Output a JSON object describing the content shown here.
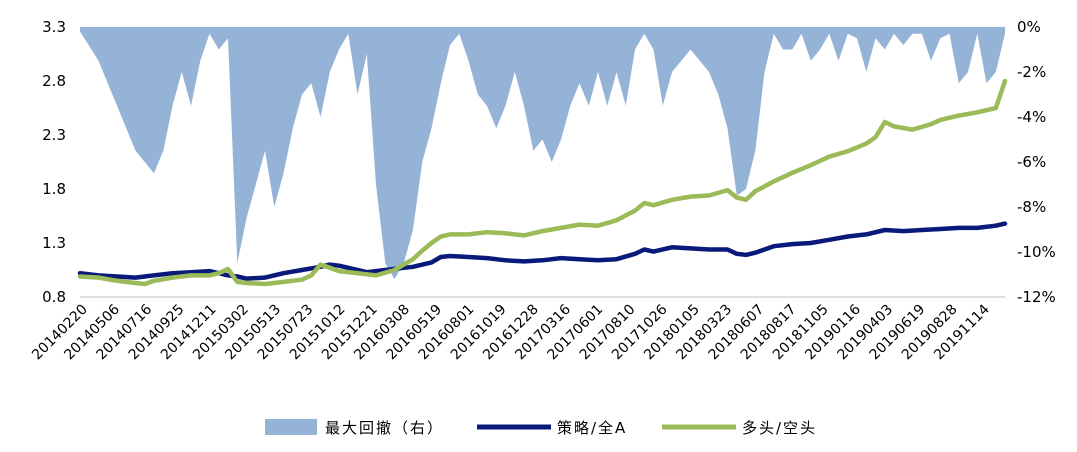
{
  "chart_data": {
    "type": "line+area",
    "x_tick_labels": [
      "20140220",
      "20140506",
      "20140716",
      "20140925",
      "20141211",
      "20150302",
      "20150513",
      "20150723",
      "20151012",
      "20151221",
      "20160308",
      "20160519",
      "20160801",
      "20161019",
      "20161228",
      "20170316",
      "20170601",
      "20170810",
      "20171026",
      "20180105",
      "20180323",
      "20180607",
      "20180817",
      "20181105",
      "20190116",
      "20190403",
      "20190619",
      "20190828",
      "20191114"
    ],
    "left_axis": {
      "ticks": [
        "3.3",
        "2.8",
        "2.3",
        "1.8",
        "1.3",
        "0.8"
      ],
      "ylim": [
        0.8,
        3.3
      ]
    },
    "right_axis": {
      "ticks": [
        "0%",
        "-2%",
        "-4%",
        "-6%",
        "-8%",
        "-10%",
        "-12%"
      ],
      "ylim": [
        -12,
        0
      ]
    },
    "legend": [
      {
        "name": "最大回撤（右）",
        "color": "#95b3d7",
        "kind": "area"
      },
      {
        "name": "策略/全A",
        "color": "#0a1a7a",
        "kind": "line"
      },
      {
        "name": "多头/空头",
        "color": "#9bbb59",
        "kind": "line"
      }
    ],
    "series": [
      {
        "name": "最大回撤（右）",
        "axis": "right",
        "points": [
          [
            0,
            -0.2
          ],
          [
            2,
            -1.5
          ],
          [
            4,
            -3.5
          ],
          [
            6,
            -5.5
          ],
          [
            8,
            -6.5
          ],
          [
            9,
            -5.5
          ],
          [
            10,
            -3.5
          ],
          [
            11,
            -2.0
          ],
          [
            12,
            -3.5
          ],
          [
            13,
            -1.5
          ],
          [
            14,
            -0.3
          ],
          [
            15,
            -1.0
          ],
          [
            16,
            -0.5
          ],
          [
            17,
            -10.5
          ],
          [
            18,
            -8.5
          ],
          [
            19,
            -7.0
          ],
          [
            20,
            -5.5
          ],
          [
            21,
            -8.0
          ],
          [
            22,
            -6.5
          ],
          [
            23,
            -4.5
          ],
          [
            24,
            -3.0
          ],
          [
            25,
            -2.5
          ],
          [
            26,
            -4.0
          ],
          [
            27,
            -2.0
          ],
          [
            28,
            -1.0
          ],
          [
            29,
            -0.3
          ],
          [
            30,
            -3.0
          ],
          [
            31,
            -1.2
          ],
          [
            32,
            -7.0
          ],
          [
            33,
            -10.5
          ],
          [
            34,
            -11.2
          ],
          [
            35,
            -10.5
          ],
          [
            36,
            -9.0
          ],
          [
            37,
            -6.0
          ],
          [
            38,
            -4.5
          ],
          [
            39,
            -2.5
          ],
          [
            40,
            -0.8
          ],
          [
            41,
            -0.3
          ],
          [
            42,
            -1.5
          ],
          [
            43,
            -3.0
          ],
          [
            44,
            -3.5
          ],
          [
            45,
            -4.5
          ],
          [
            46,
            -3.5
          ],
          [
            47,
            -2.0
          ],
          [
            48,
            -3.5
          ],
          [
            49,
            -5.5
          ],
          [
            50,
            -5.0
          ],
          [
            51,
            -6.0
          ],
          [
            52,
            -5.0
          ],
          [
            53,
            -3.5
          ],
          [
            54,
            -2.5
          ],
          [
            55,
            -3.5
          ],
          [
            56,
            -2.0
          ],
          [
            57,
            -3.5
          ],
          [
            58,
            -2.0
          ],
          [
            59,
            -3.5
          ],
          [
            60,
            -1.0
          ],
          [
            61,
            -0.3
          ],
          [
            62,
            -1.0
          ],
          [
            63,
            -3.5
          ],
          [
            64,
            -2.0
          ],
          [
            65,
            -1.5
          ],
          [
            66,
            -1.0
          ],
          [
            67,
            -1.5
          ],
          [
            68,
            -2.0
          ],
          [
            69,
            -3.0
          ],
          [
            70,
            -4.5
          ],
          [
            71,
            -7.5
          ],
          [
            72,
            -7.2
          ],
          [
            73,
            -5.5
          ],
          [
            74,
            -2.0
          ],
          [
            75,
            -0.3
          ],
          [
            76,
            -1.0
          ],
          [
            77,
            -1.0
          ],
          [
            78,
            -0.3
          ],
          [
            79,
            -1.5
          ],
          [
            80,
            -1.0
          ],
          [
            81,
            -0.3
          ],
          [
            82,
            -1.5
          ],
          [
            83,
            -0.3
          ],
          [
            84,
            -0.5
          ],
          [
            85,
            -2.0
          ],
          [
            86,
            -0.5
          ],
          [
            87,
            -1.0
          ],
          [
            88,
            -0.3
          ],
          [
            89,
            -0.8
          ],
          [
            90,
            -0.3
          ],
          [
            91,
            -0.3
          ],
          [
            92,
            -1.5
          ],
          [
            93,
            -0.5
          ],
          [
            94,
            -0.3
          ],
          [
            95,
            -2.5
          ],
          [
            96,
            -2.0
          ],
          [
            97,
            -0.3
          ],
          [
            98,
            -2.5
          ],
          [
            99,
            -2.0
          ],
          [
            100,
            -0.3
          ]
        ]
      },
      {
        "name": "策略/全A",
        "axis": "left",
        "points": [
          [
            0,
            1.02
          ],
          [
            2,
            1.0
          ],
          [
            4,
            0.99
          ],
          [
            6,
            0.98
          ],
          [
            8,
            1.0
          ],
          [
            10,
            1.02
          ],
          [
            12,
            1.03
          ],
          [
            14,
            1.04
          ],
          [
            15,
            1.02
          ],
          [
            16,
            1.0
          ],
          [
            17,
            0.99
          ],
          [
            18,
            0.97
          ],
          [
            20,
            0.98
          ],
          [
            22,
            1.02
          ],
          [
            24,
            1.05
          ],
          [
            26,
            1.08
          ],
          [
            27,
            1.1
          ],
          [
            28,
            1.09
          ],
          [
            30,
            1.05
          ],
          [
            31,
            1.03
          ],
          [
            33,
            1.05
          ],
          [
            35,
            1.07
          ],
          [
            36,
            1.08
          ],
          [
            38,
            1.12
          ],
          [
            39,
            1.17
          ],
          [
            40,
            1.18
          ],
          [
            42,
            1.17
          ],
          [
            44,
            1.16
          ],
          [
            46,
            1.14
          ],
          [
            48,
            1.13
          ],
          [
            50,
            1.14
          ],
          [
            52,
            1.16
          ],
          [
            54,
            1.15
          ],
          [
            56,
            1.14
          ],
          [
            58,
            1.15
          ],
          [
            60,
            1.2
          ],
          [
            61,
            1.24
          ],
          [
            62,
            1.22
          ],
          [
            64,
            1.26
          ],
          [
            66,
            1.25
          ],
          [
            68,
            1.24
          ],
          [
            70,
            1.24
          ],
          [
            71,
            1.2
          ],
          [
            72,
            1.19
          ],
          [
            73,
            1.21
          ],
          [
            75,
            1.27
          ],
          [
            77,
            1.29
          ],
          [
            79,
            1.3
          ],
          [
            81,
            1.33
          ],
          [
            83,
            1.36
          ],
          [
            85,
            1.38
          ],
          [
            87,
            1.42
          ],
          [
            89,
            1.41
          ],
          [
            91,
            1.42
          ],
          [
            93,
            1.43
          ],
          [
            95,
            1.44
          ],
          [
            97,
            1.44
          ],
          [
            99,
            1.46
          ],
          [
            100,
            1.48
          ]
        ]
      },
      {
        "name": "多头/空头",
        "axis": "left",
        "points": [
          [
            0,
            0.99
          ],
          [
            2,
            0.98
          ],
          [
            4,
            0.95
          ],
          [
            6,
            0.93
          ],
          [
            7,
            0.92
          ],
          [
            8,
            0.95
          ],
          [
            10,
            0.98
          ],
          [
            12,
            1.0
          ],
          [
            14,
            1.0
          ],
          [
            15,
            1.02
          ],
          [
            16,
            1.06
          ],
          [
            17,
            0.94
          ],
          [
            18,
            0.93
          ],
          [
            20,
            0.92
          ],
          [
            22,
            0.94
          ],
          [
            24,
            0.96
          ],
          [
            25,
            1.0
          ],
          [
            26,
            1.1
          ],
          [
            27,
            1.07
          ],
          [
            28,
            1.04
          ],
          [
            30,
            1.02
          ],
          [
            31,
            1.01
          ],
          [
            32,
            1.0
          ],
          [
            34,
            1.05
          ],
          [
            35,
            1.1
          ],
          [
            36,
            1.15
          ],
          [
            37,
            1.23
          ],
          [
            38,
            1.3
          ],
          [
            39,
            1.36
          ],
          [
            40,
            1.38
          ],
          [
            42,
            1.38
          ],
          [
            44,
            1.4
          ],
          [
            46,
            1.39
          ],
          [
            48,
            1.37
          ],
          [
            50,
            1.41
          ],
          [
            52,
            1.44
          ],
          [
            54,
            1.47
          ],
          [
            56,
            1.46
          ],
          [
            58,
            1.51
          ],
          [
            60,
            1.6
          ],
          [
            61,
            1.67
          ],
          [
            62,
            1.65
          ],
          [
            64,
            1.7
          ],
          [
            66,
            1.73
          ],
          [
            68,
            1.74
          ],
          [
            70,
            1.79
          ],
          [
            71,
            1.72
          ],
          [
            72,
            1.7
          ],
          [
            73,
            1.78
          ],
          [
            75,
            1.87
          ],
          [
            77,
            1.95
          ],
          [
            79,
            2.02
          ],
          [
            81,
            2.1
          ],
          [
            83,
            2.15
          ],
          [
            85,
            2.22
          ],
          [
            86,
            2.28
          ],
          [
            87,
            2.42
          ],
          [
            88,
            2.38
          ],
          [
            90,
            2.35
          ],
          [
            92,
            2.4
          ],
          [
            93,
            2.44
          ],
          [
            95,
            2.48
          ],
          [
            97,
            2.51
          ],
          [
            98,
            2.53
          ],
          [
            99,
            2.55
          ],
          [
            100,
            2.8
          ]
        ]
      }
    ],
    "grid": false
  }
}
